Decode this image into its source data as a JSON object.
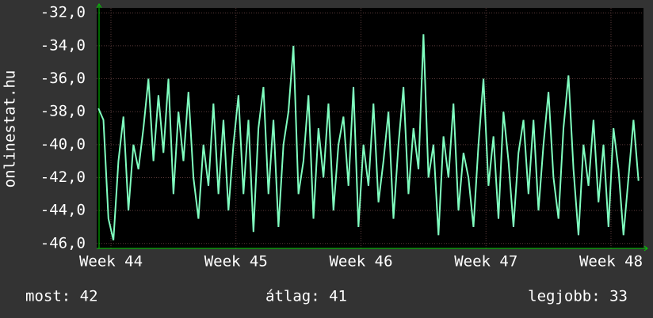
{
  "chart_data": {
    "type": "line",
    "y_label": "onlinestat.hu",
    "x": [
      43.9,
      43.94,
      43.98,
      44.02,
      44.06,
      44.1,
      44.14,
      44.18,
      44.22,
      44.26,
      44.3,
      44.34,
      44.38,
      44.42,
      44.46,
      44.5,
      44.54,
      44.58,
      44.62,
      44.66,
      44.7,
      44.74,
      44.78,
      44.82,
      44.86,
      44.9,
      44.94,
      44.98,
      45.02,
      45.06,
      45.1,
      45.14,
      45.18,
      45.22,
      45.26,
      45.3,
      45.34,
      45.38,
      45.42,
      45.46,
      45.5,
      45.54,
      45.58,
      45.62,
      45.66,
      45.7,
      45.74,
      45.78,
      45.82,
      45.86,
      45.9,
      45.94,
      45.98,
      46.02,
      46.06,
      46.1,
      46.14,
      46.18,
      46.22,
      46.26,
      46.3,
      46.34,
      46.38,
      46.42,
      46.46,
      46.5,
      46.54,
      46.58,
      46.62,
      46.66,
      46.7,
      46.74,
      46.78,
      46.82,
      46.86,
      46.9,
      46.94,
      46.98,
      47.02,
      47.06,
      47.1,
      47.14,
      47.18,
      47.22,
      47.26,
      47.3,
      47.34,
      47.38,
      47.42,
      47.46,
      47.5,
      47.54,
      47.58,
      47.62,
      47.66,
      47.7,
      47.74,
      47.78,
      47.82,
      47.86,
      47.9,
      47.94,
      47.98,
      48.02,
      48.06,
      48.1,
      48.14,
      48.18,
      48.22
    ],
    "series": [
      {
        "color": "#80ffc0",
        "values": [
          -37.8,
          -38.5,
          -44.5,
          -45.8,
          -41,
          -38.3,
          -44,
          -40,
          -41.5,
          -39,
          -36,
          -41,
          -37,
          -40.5,
          -36,
          -43,
          -38,
          -41,
          -36.8,
          -42,
          -44.5,
          -40,
          -42.5,
          -37.5,
          -43,
          -38.5,
          -44,
          -40,
          -37,
          -43,
          -38.5,
          -45.3,
          -39,
          -36.5,
          -43,
          -38.5,
          -45,
          -40,
          -38,
          -34,
          -43,
          -41,
          -37,
          -44.5,
          -39,
          -42,
          -37.5,
          -44,
          -40,
          -38.3,
          -42.5,
          -36.5,
          -45,
          -40,
          -42.5,
          -37.5,
          -43.5,
          -41,
          -38,
          -44.5,
          -40,
          -36.5,
          -43,
          -39,
          -41.5,
          -33.3,
          -42,
          -40,
          -45.5,
          -39.5,
          -42,
          -37.5,
          -44,
          -40.5,
          -42,
          -45,
          -40,
          -36,
          -42.5,
          -39.5,
          -44.5,
          -38,
          -41,
          -45,
          -40.5,
          -38.5,
          -43,
          -38.5,
          -44,
          -40,
          -36.8,
          -42,
          -44.5,
          -39,
          -35.8,
          -41.5,
          -45.5,
          -40,
          -42.5,
          -38.5,
          -43.5,
          -40,
          -45,
          -39,
          -41.5,
          -45.5,
          -42,
          -38.5,
          -42.2
        ]
      }
    ],
    "xlim": [
      43.886,
      48.26
    ],
    "xticks": [
      {
        "value": 44,
        "label": "Week 44"
      },
      {
        "value": 45,
        "label": "Week 45"
      },
      {
        "value": 46,
        "label": "Week 46"
      },
      {
        "value": 47,
        "label": "Week 47"
      },
      {
        "value": 48,
        "label": "Week 48"
      }
    ],
    "ylim": [
      -46.3,
      -31.7
    ],
    "yticks": [
      {
        "value": -32,
        "label": "-32,0"
      },
      {
        "value": -34,
        "label": "-34,0"
      },
      {
        "value": -36,
        "label": "-36,0"
      },
      {
        "value": -38,
        "label": "-38,0"
      },
      {
        "value": -40,
        "label": "-40,0"
      },
      {
        "value": -42,
        "label": "-42,0"
      },
      {
        "value": -44,
        "label": "-44,0"
      },
      {
        "value": -46,
        "label": "-46,0"
      }
    ],
    "grid": true,
    "stats": [
      "most: 42",
      "átlag: 41",
      "legjobb: 33"
    ]
  }
}
